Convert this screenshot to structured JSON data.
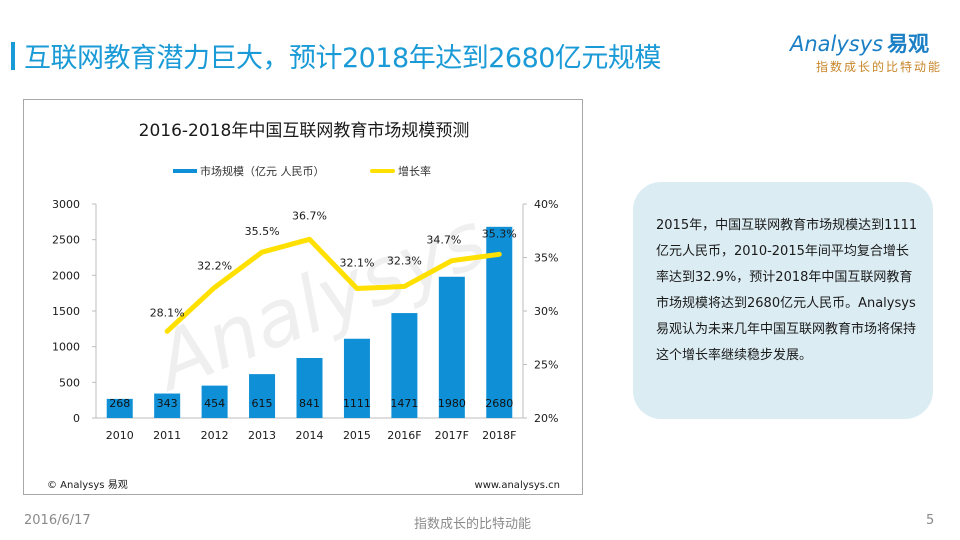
{
  "slide": {
    "title": "互联网教育潜力巨大，预计2018年达到2680亿元规模",
    "accent_color": "#1a9ad6"
  },
  "logo": {
    "brand": "Analysys",
    "brand_cn": "易观",
    "tagline": "指数成长的比特动能"
  },
  "chart_data": {
    "type": "bar",
    "title": "2016-2018年中国互联网教育市场规模预测",
    "categories": [
      "2010",
      "2011",
      "2012",
      "2013",
      "2014",
      "2015",
      "2016F",
      "2017F",
      "2018F"
    ],
    "series": [
      {
        "name": "市场规模（亿元 人民币）",
        "type": "bar",
        "axis": "left",
        "color": "#0e8fd6",
        "values": [
          268,
          343,
          454,
          615,
          841,
          1111,
          1471,
          1980,
          2680
        ],
        "labels": [
          "268",
          "343",
          "454",
          "615",
          "841",
          "1111",
          "1471",
          "1980",
          "2680"
        ]
      },
      {
        "name": "增长率",
        "type": "line",
        "axis": "right",
        "color": "#ffe000",
        "values": [
          null,
          28.1,
          32.2,
          35.5,
          36.7,
          32.1,
          32.3,
          34.7,
          35.3
        ],
        "labels": [
          "",
          "28.1%",
          "32.2%",
          "35.5%",
          "36.7%",
          "32.1%",
          "32.3%",
          "34.7%",
          "35.3%"
        ]
      }
    ],
    "y_left": {
      "ylim": [
        0,
        3000
      ],
      "ticks": [
        "0",
        "500",
        "1000",
        "1500",
        "2000",
        "2500",
        "3000"
      ],
      "tick_values": [
        0,
        500,
        1000,
        1500,
        2000,
        2500,
        3000
      ]
    },
    "y_right": {
      "ylim": [
        20,
        40
      ],
      "ticks": [
        "20%",
        "25%",
        "30%",
        "35%",
        "40%"
      ],
      "tick_values": [
        20,
        25,
        30,
        35,
        40
      ]
    },
    "xlabel": "",
    "ylabel": "",
    "grid": false,
    "legend": "top-center",
    "watermark": "Analysys",
    "source_left": "© Analysys 易观",
    "source_right": "www.analysys.cn"
  },
  "panel": {
    "text": "2015年，中国互联网教育市场规模达到1111亿元人民币，2010-2015年间平均复合增长率达到32.9%，预计2018年中国互联网教育市场规模将达到2680亿元人民币。Analysys易观认为未来几年中国互联网教育市场将保持这个增长率继续稳步发展。"
  },
  "footer": {
    "date": "2016/6/17",
    "slogan": "指数成长的比特动能",
    "page": "5"
  }
}
